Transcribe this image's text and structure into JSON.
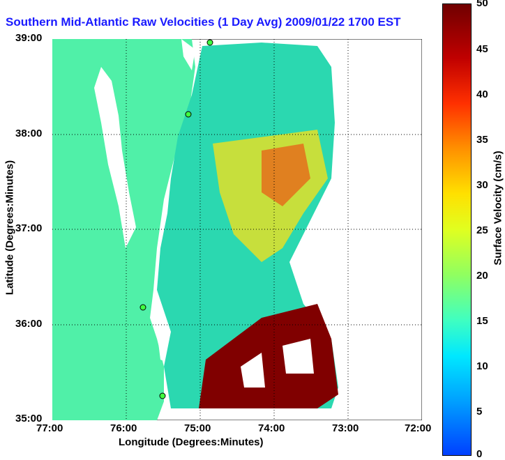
{
  "title": "Southern Mid-Atlantic Raw Velocities (1 Day Avg) 2009/01/22 1700 EST",
  "xlabel": "Longitude (Degrees:Minutes)",
  "ylabel": "Latitude (Degrees:Minutes)",
  "x_ticks": [
    "77:00",
    "76:00",
    "75:00",
    "74:00",
    "73:00",
    "72:00"
  ],
  "y_ticks": [
    "39:00",
    "38:00",
    "37:00",
    "36:00",
    "35:00"
  ],
  "colorbar": {
    "label": "Surface Velocity (cm/s)",
    "ticks": [
      "50",
      "45",
      "40",
      "35",
      "30",
      "25",
      "20",
      "15",
      "10",
      "5",
      "0"
    ]
  },
  "colors": {
    "land": "#50f0a8",
    "title": "#1a1aff",
    "high": "#800000"
  }
}
